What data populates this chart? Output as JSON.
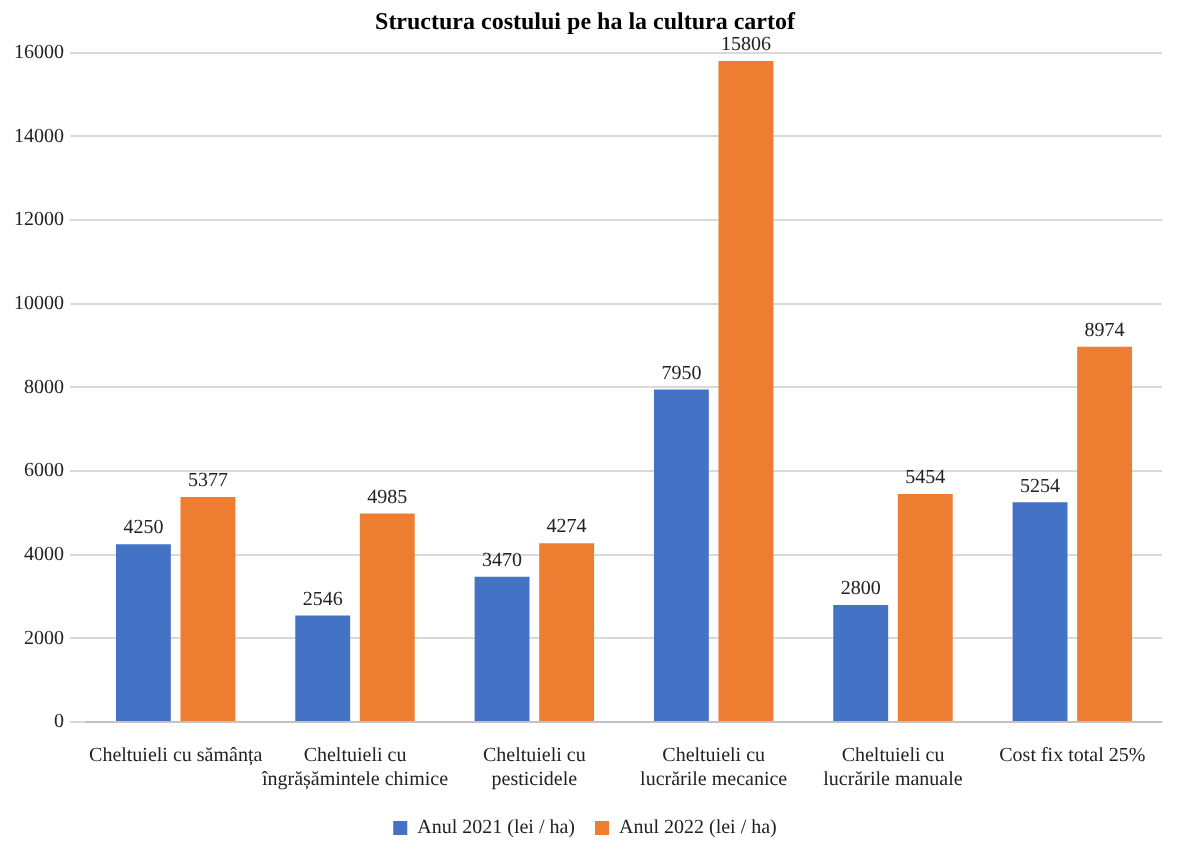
{
  "chart_data": {
    "type": "bar",
    "title": "Structura costului pe ha la cultura cartof",
    "categories": [
      "Cheltuieli cu sămânța",
      "Cheltuieli cu îngrășămintele chimice",
      "Cheltuieli cu pesticidele",
      "Cheltuieli cu lucrările mecanice",
      "Cheltuieli cu lucrările manuale",
      "Cost fix total 25%"
    ],
    "series": [
      {
        "name": "Anul 2021 (lei / ha)",
        "color": "#4472c4",
        "values": [
          4250,
          2546,
          3470,
          7950,
          2800,
          5254
        ]
      },
      {
        "name": "Anul 2022 (lei / ha)",
        "color": "#ed7d31",
        "values": [
          5377,
          4985,
          4274,
          15806,
          5454,
          8974
        ]
      }
    ],
    "ylim": [
      0,
      16000
    ],
    "yticks": [
      0,
      2000,
      4000,
      6000,
      8000,
      10000,
      12000,
      14000,
      16000
    ],
    "grid": "y",
    "legend": "bottom",
    "data_labels": true
  }
}
